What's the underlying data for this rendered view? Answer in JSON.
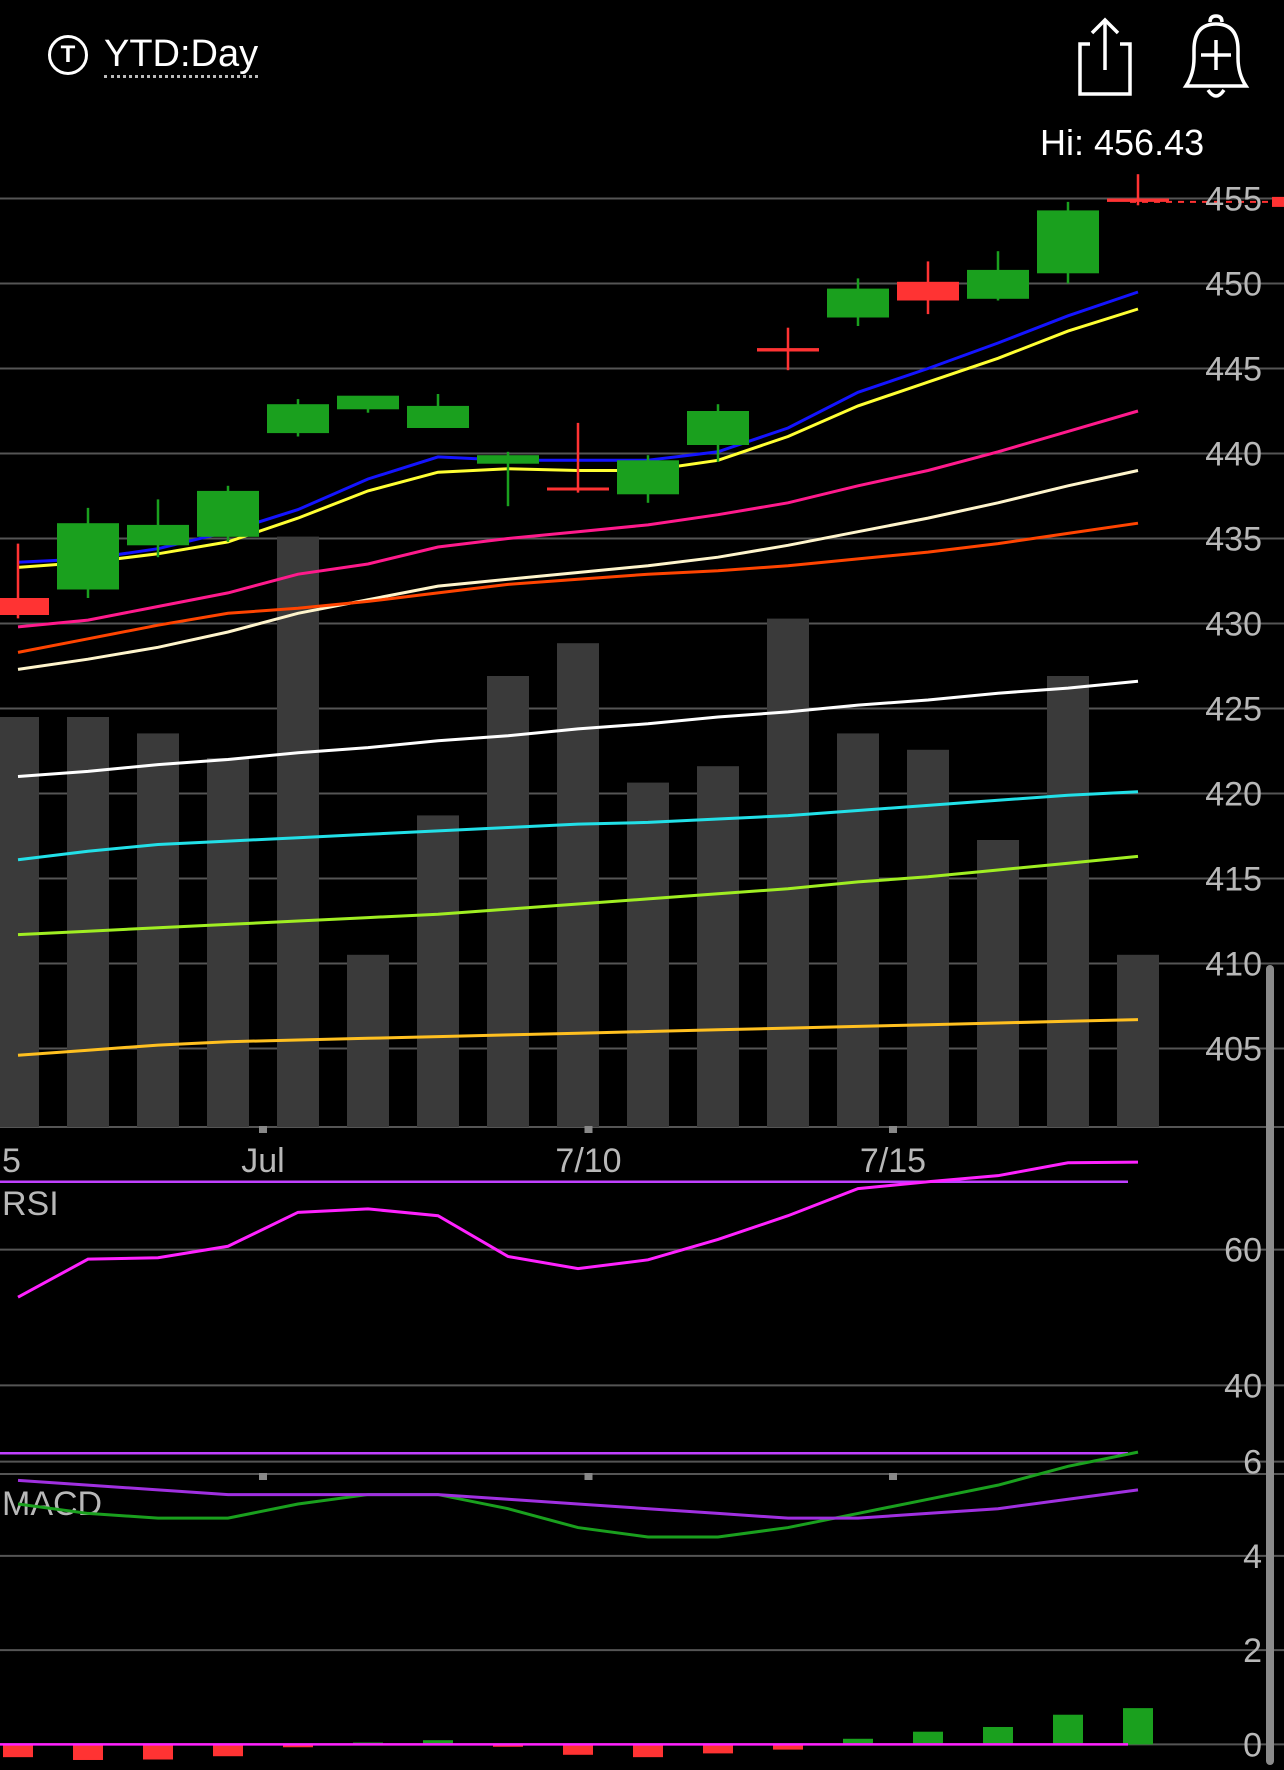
{
  "header": {
    "period_icon": "T",
    "period_label": "YTD:Day",
    "share_icon": "share-icon",
    "alert_icon": "add-alert-bell-icon",
    "hi_label": "Hi: 456.43"
  },
  "colors": {
    "up": "#1aa01e",
    "down": "#ff3333",
    "volume": "#3a3a3a",
    "grid": "#555555",
    "ma": [
      "#1414ff",
      "#ffff33",
      "#ff1a8c",
      "#fff5cc",
      "#ff4400",
      "#ffffff",
      "#22e0e8",
      "#a0ee22",
      "#ffc020"
    ],
    "rsi_line": "#ff22ff",
    "rsi_bounds": "#c040ff",
    "macd_line": "#1aa01e",
    "macd_signal": "#a030e0"
  },
  "chart_data": [
    {
      "type": "candlestick",
      "title": "",
      "price_axis_ticks": [
        455,
        450,
        445,
        440,
        435,
        430,
        425,
        420,
        415,
        410,
        405
      ],
      "x_tick_labels": [
        {
          "label": "5",
          "index": -0.9
        },
        {
          "label": "Jul",
          "index": 3.5
        },
        {
          "label": "7/10",
          "index": 8.15
        },
        {
          "label": "7/15",
          "index": 12.5
        }
      ],
      "ylim": [
        400.5,
        460.5
      ],
      "candles": [
        {
          "o": 431.5,
          "h": 434.7,
          "l": 430.3,
          "c": 430.5
        },
        {
          "o": 432.0,
          "h": 436.8,
          "l": 431.5,
          "c": 435.9
        },
        {
          "o": 434.6,
          "h": 437.3,
          "l": 433.9,
          "c": 435.8
        },
        {
          "o": 435.1,
          "h": 438.1,
          "l": 434.8,
          "c": 437.8
        },
        {
          "o": 441.2,
          "h": 443.2,
          "l": 441.0,
          "c": 442.9
        },
        {
          "o": 442.6,
          "h": 443.1,
          "l": 442.4,
          "c": 443.4
        },
        {
          "o": 441.5,
          "h": 443.5,
          "l": 441.5,
          "c": 442.8
        },
        {
          "o": 439.4,
          "h": 440.1,
          "l": 436.9,
          "c": 439.9
        },
        {
          "o": 438.0,
          "h": 441.8,
          "l": 437.7,
          "c": 437.9
        },
        {
          "o": 437.6,
          "h": 439.9,
          "l": 437.1,
          "c": 439.6
        },
        {
          "o": 440.5,
          "h": 442.9,
          "l": 439.5,
          "c": 442.5
        },
        {
          "o": 446.2,
          "h": 447.4,
          "l": 444.9,
          "c": 446.0
        },
        {
          "o": 448.0,
          "h": 450.3,
          "l": 447.5,
          "c": 449.7
        },
        {
          "o": 450.1,
          "h": 451.3,
          "l": 448.2,
          "c": 449.0
        },
        {
          "o": 449.1,
          "h": 451.9,
          "l": 449.0,
          "c": 450.8
        },
        {
          "o": 450.6,
          "h": 454.8,
          "l": 450.0,
          "c": 454.3
        },
        {
          "o": 455.0,
          "h": 456.43,
          "l": 454.6,
          "c": 454.8
        }
      ],
      "volume_rel": [
        0.5,
        0.5,
        0.48,
        0.45,
        0.72,
        0.21,
        0.38,
        0.55,
        0.59,
        0.42,
        0.44,
        0.62,
        0.48,
        0.46,
        0.35,
        0.55,
        0.21
      ],
      "moving_averages": [
        [
          433.6,
          433.8,
          434.4,
          435.4,
          436.7,
          438.5,
          439.8,
          439.6,
          439.6,
          439.6,
          440.1,
          441.5,
          443.6,
          445.0,
          446.5,
          448.1,
          449.5
        ],
        [
          433.3,
          433.6,
          434.1,
          434.8,
          436.2,
          437.8,
          438.9,
          439.1,
          439.0,
          439.0,
          439.6,
          441.0,
          442.8,
          444.2,
          445.6,
          447.2,
          448.5
        ],
        [
          429.8,
          430.2,
          431.0,
          431.8,
          432.9,
          433.5,
          434.5,
          435.0,
          435.4,
          435.8,
          436.4,
          437.1,
          438.1,
          439.0,
          440.1,
          441.3,
          442.5
        ],
        [
          427.3,
          427.9,
          428.6,
          429.5,
          430.6,
          431.4,
          432.2,
          432.6,
          433.0,
          433.4,
          433.9,
          434.6,
          435.4,
          436.2,
          437.1,
          438.1,
          439.0
        ],
        [
          428.3,
          429.1,
          429.9,
          430.6,
          430.9,
          431.3,
          431.8,
          432.3,
          432.6,
          432.9,
          433.1,
          433.4,
          433.8,
          434.2,
          434.7,
          435.3,
          435.9
        ],
        [
          421.0,
          421.3,
          421.7,
          422.0,
          422.4,
          422.7,
          423.1,
          423.4,
          423.8,
          424.1,
          424.5,
          424.8,
          425.2,
          425.5,
          425.9,
          426.2,
          426.6
        ],
        [
          416.1,
          416.6,
          417.0,
          417.2,
          417.4,
          417.6,
          417.8,
          418.0,
          418.2,
          418.3,
          418.5,
          418.7,
          419.0,
          419.3,
          419.6,
          419.9,
          420.1
        ],
        [
          411.7,
          411.9,
          412.1,
          412.3,
          412.5,
          412.7,
          412.9,
          413.2,
          413.5,
          413.8,
          414.1,
          414.4,
          414.8,
          415.1,
          415.5,
          415.9,
          416.3
        ],
        [
          404.6,
          404.9,
          405.2,
          405.4,
          405.5,
          405.6,
          405.7,
          405.8,
          405.9,
          406.0,
          406.1,
          406.2,
          406.3,
          406.4,
          406.5,
          406.6,
          406.7
        ]
      ]
    },
    {
      "type": "line",
      "title": "RSI",
      "y_tick_labels": [
        60,
        40
      ],
      "ylim": [
        15,
        85
      ],
      "bounds": [
        70,
        30
      ],
      "series": [
        {
          "values": [
            53.0,
            58.6,
            58.8,
            60.5,
            65.5,
            66.0,
            65.0,
            59.0,
            57.2,
            58.5,
            61.5,
            65.0,
            69.0,
            70.0,
            70.9,
            72.8,
            72.9
          ]
        }
      ]
    },
    {
      "type": "bar+line",
      "title": "MACD",
      "y_tick_labels": [
        6,
        4,
        2,
        0
      ],
      "ylim": [
        -0.5,
        7.2
      ],
      "macd": [
        5.1,
        4.9,
        4.8,
        4.8,
        5.1,
        5.3,
        5.3,
        5.0,
        4.6,
        4.4,
        4.4,
        4.6,
        4.9,
        5.2,
        5.5,
        5.9,
        6.2
      ],
      "signal": [
        5.6,
        5.5,
        5.4,
        5.3,
        5.3,
        5.3,
        5.3,
        5.2,
        5.1,
        5.0,
        4.9,
        4.8,
        4.8,
        4.9,
        5.0,
        5.2,
        5.4
      ],
      "histogram": [
        -0.27,
        -0.33,
        -0.32,
        -0.25,
        -0.06,
        0.04,
        0.09,
        -0.05,
        -0.22,
        -0.27,
        -0.19,
        -0.11,
        0.12,
        0.27,
        0.37,
        0.63,
        0.77
      ]
    }
  ]
}
